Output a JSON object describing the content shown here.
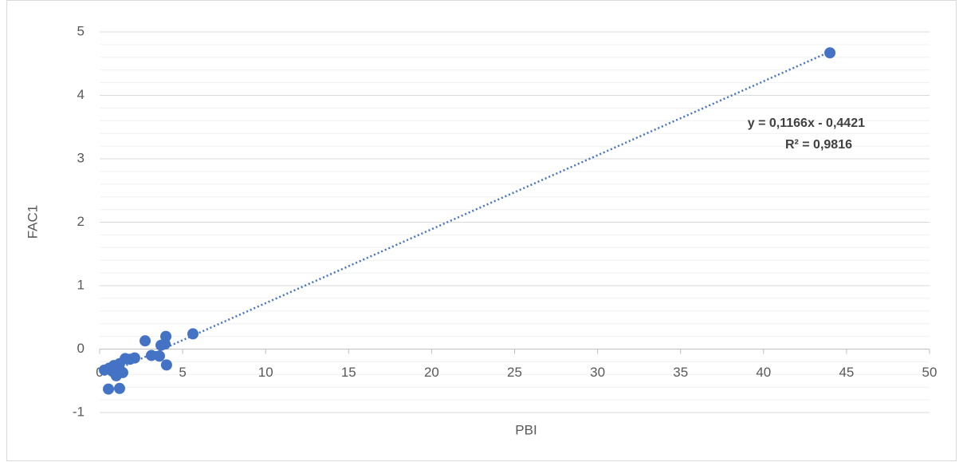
{
  "chart_data": {
    "type": "scatter",
    "x_label": "PBI",
    "y_label": "FAC1",
    "x": [
      44.0,
      5.62,
      3.99,
      3.94,
      3.7,
      4.03,
      2.74,
      3.12,
      3.6,
      1.54,
      2.11,
      1.83,
      1.39,
      1.2,
      0.53,
      0.29,
      0.58,
      0.86,
      1.0,
      1.1,
      0.77,
      1.2
    ],
    "series": [
      {
        "color": "#4472c4",
        "values": [
          4.67,
          0.24,
          0.2,
          0.08,
          0.06,
          -0.25,
          0.13,
          -0.1,
          -0.11,
          -0.15,
          -0.14,
          -0.16,
          -0.37,
          -0.62,
          -0.63,
          -0.33,
          -0.3,
          -0.26,
          -0.42,
          -0.34,
          -0.35,
          -0.23
        ]
      }
    ],
    "trendline": {
      "slope": 0.1166,
      "intercept": -0.4421,
      "equation": "y = 0,1166x - 0,4421",
      "r2": "R² = 0,9816"
    },
    "xlim": [
      0,
      50
    ],
    "xticks": [
      0,
      5,
      10,
      15,
      20,
      25,
      30,
      35,
      40,
      45,
      50
    ],
    "ylim": [
      -1,
      5
    ],
    "yticks": [
      -1,
      0,
      1,
      2,
      3,
      4,
      5
    ],
    "y_minor_gridlines": [
      -0.8,
      -0.6,
      -0.4,
      -0.2,
      0.2,
      0.4,
      0.6,
      0.8,
      1.2,
      1.4,
      1.6,
      1.8,
      2.2,
      2.4,
      2.6,
      2.8,
      3.2,
      3.4,
      3.6,
      3.8,
      4.2,
      4.4,
      4.6,
      4.8
    ],
    "grid": true
  }
}
